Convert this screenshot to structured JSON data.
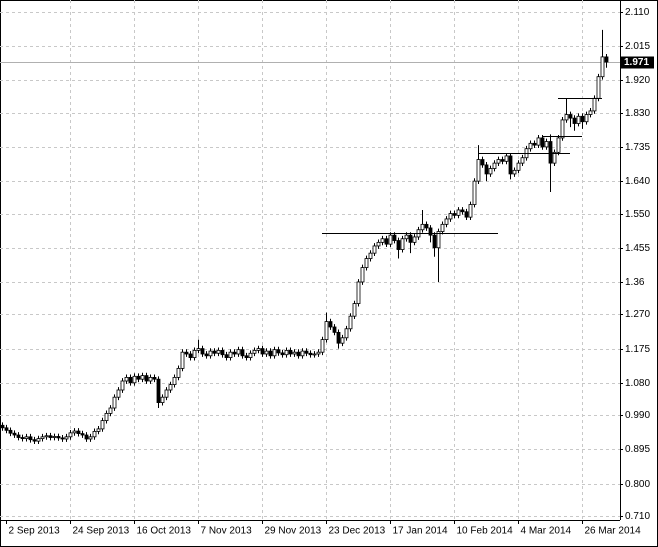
{
  "chart_data": {
    "type": "candlestick",
    "categories": [
      null,
      "2 Sep 2013",
      null,
      null,
      null,
      null,
      null,
      null,
      null,
      null,
      null,
      null,
      null,
      null,
      null,
      null,
      null,
      "24 Sep 2013",
      null,
      null,
      null,
      null,
      null,
      null,
      null,
      null,
      null,
      null,
      null,
      null,
      null,
      null,
      null,
      "16 Oct 2013",
      null,
      null,
      null,
      null,
      null,
      null,
      null,
      null,
      null,
      null,
      null,
      null,
      null,
      null,
      null,
      "7 Nov 2013",
      null,
      null,
      null,
      null,
      null,
      null,
      null,
      null,
      null,
      null,
      null,
      null,
      null,
      null,
      null,
      "29 Nov 2013",
      null,
      null,
      null,
      null,
      null,
      null,
      null,
      null,
      null,
      null,
      null,
      null,
      null,
      null,
      null,
      "23 Dec 2013",
      null,
      null,
      null,
      null,
      null,
      null,
      null,
      null,
      null,
      null,
      null,
      null,
      null,
      null,
      null,
      "17 Jan 2014",
      null,
      null,
      null,
      null,
      null,
      null,
      null,
      null,
      null,
      null,
      null,
      null,
      null,
      null,
      null,
      "10 Feb 2014",
      null,
      null,
      null,
      null,
      null,
      null,
      null,
      null,
      null,
      null,
      null,
      null,
      null,
      null,
      null,
      "4 Mar 2014",
      null,
      null,
      null,
      null,
      null,
      null,
      null,
      null,
      null,
      null,
      null,
      null,
      null,
      null,
      null,
      "26 Mar 2014",
      null,
      null,
      null,
      null,
      null,
      null
    ],
    "open": [
      0.962,
      0.955,
      0.948,
      0.94,
      0.935,
      0.928,
      0.925,
      0.93,
      0.922,
      0.918,
      0.925,
      0.93,
      0.933,
      0.928,
      0.931,
      0.927,
      0.924,
      0.93,
      0.941,
      0.946,
      0.939,
      0.935,
      0.924,
      0.93,
      0.945,
      0.952,
      0.975,
      0.995,
      1.01,
      1.04,
      1.06,
      1.085,
      1.095,
      1.08,
      1.098,
      1.09,
      1.1,
      1.085,
      1.095,
      1.09,
      1.025,
      1.04,
      1.06,
      1.075,
      1.095,
      1.12,
      1.165,
      1.16,
      1.15,
      1.17,
      1.175,
      1.16,
      1.155,
      1.168,
      1.162,
      1.17,
      1.158,
      1.15,
      1.165,
      1.16,
      1.172,
      1.155,
      1.15,
      1.162,
      1.17,
      1.175,
      1.16,
      1.168,
      1.155,
      1.172,
      1.163,
      1.158,
      1.17,
      1.16,
      1.165,
      1.155,
      1.168,
      1.162,
      1.158,
      1.16,
      1.165,
      1.2,
      1.25,
      1.235,
      1.22,
      1.19,
      1.205,
      1.23,
      1.265,
      1.3,
      1.36,
      1.4,
      1.425,
      1.44,
      1.46,
      1.47,
      1.48,
      1.465,
      1.49,
      1.475,
      1.45,
      1.48,
      1.49,
      1.47,
      1.485,
      1.505,
      1.52,
      1.51,
      1.49,
      1.455,
      1.5,
      1.52,
      1.535,
      1.55,
      1.545,
      1.56,
      1.555,
      1.54,
      1.575,
      1.64,
      1.7,
      1.685,
      1.66,
      1.675,
      1.69,
      1.7,
      1.695,
      1.71,
      1.66,
      1.67,
      1.69,
      1.705,
      1.73,
      1.745,
      1.74,
      1.76,
      1.735,
      1.75,
      1.69,
      1.72,
      1.76,
      1.81,
      1.825,
      1.815,
      1.8,
      1.82,
      1.805,
      1.825,
      1.835,
      1.87,
      1.93,
      1.985
    ],
    "high": [
      0.97,
      0.963,
      0.956,
      0.948,
      0.943,
      0.936,
      0.938,
      0.938,
      0.93,
      0.933,
      0.938,
      0.941,
      0.941,
      0.939,
      0.939,
      0.935,
      0.938,
      0.949,
      0.954,
      0.954,
      0.947,
      0.943,
      0.938,
      0.953,
      0.96,
      0.983,
      1.003,
      1.018,
      1.048,
      1.068,
      1.093,
      1.103,
      1.103,
      1.106,
      1.106,
      1.108,
      1.108,
      1.103,
      1.103,
      1.098,
      1.048,
      1.068,
      1.083,
      1.103,
      1.128,
      1.173,
      1.173,
      1.168,
      1.178,
      1.2,
      1.183,
      1.168,
      1.176,
      1.176,
      1.178,
      1.178,
      1.166,
      1.173,
      1.173,
      1.18,
      1.18,
      1.163,
      1.17,
      1.178,
      1.183,
      1.183,
      1.176,
      1.176,
      1.18,
      1.18,
      1.171,
      1.178,
      1.178,
      1.173,
      1.173,
      1.176,
      1.176,
      1.17,
      1.168,
      1.173,
      1.208,
      1.275,
      1.258,
      1.243,
      1.228,
      1.213,
      1.238,
      1.273,
      1.308,
      1.368,
      1.408,
      1.433,
      1.448,
      1.468,
      1.478,
      1.488,
      1.488,
      1.498,
      1.498,
      1.483,
      1.488,
      1.498,
      1.498,
      1.493,
      1.513,
      1.56,
      1.528,
      1.518,
      1.498,
      1.508,
      1.528,
      1.543,
      1.558,
      1.558,
      1.568,
      1.568,
      1.563,
      1.583,
      1.648,
      1.74,
      1.708,
      1.693,
      1.683,
      1.698,
      1.708,
      1.708,
      1.718,
      1.718,
      1.678,
      1.698,
      1.713,
      1.738,
      1.753,
      1.753,
      1.768,
      1.768,
      1.758,
      1.77,
      1.728,
      1.768,
      1.818,
      1.87,
      1.833,
      1.823,
      1.828,
      1.828,
      1.833,
      1.843,
      1.878,
      1.938,
      2.06,
      1.993
    ],
    "low": [
      0.947,
      0.94,
      0.932,
      0.927,
      0.92,
      0.917,
      0.917,
      0.914,
      0.91,
      0.91,
      0.917,
      0.922,
      0.92,
      0.92,
      0.919,
      0.916,
      0.916,
      0.922,
      0.933,
      0.931,
      0.927,
      0.916,
      0.916,
      0.922,
      0.937,
      0.944,
      0.967,
      0.987,
      1.002,
      1.032,
      1.052,
      1.077,
      1.072,
      1.072,
      1.082,
      1.082,
      1.077,
      1.077,
      1.082,
      1.01,
      1.017,
      1.032,
      1.052,
      1.067,
      1.087,
      1.112,
      1.152,
      1.142,
      1.142,
      1.162,
      1.152,
      1.147,
      1.147,
      1.154,
      1.154,
      1.15,
      1.142,
      1.142,
      1.152,
      1.152,
      1.147,
      1.142,
      1.142,
      1.154,
      1.162,
      1.152,
      1.152,
      1.147,
      1.147,
      1.155,
      1.15,
      1.15,
      1.152,
      1.152,
      1.147,
      1.147,
      1.154,
      1.15,
      1.15,
      1.152,
      1.157,
      1.192,
      1.227,
      1.212,
      1.175,
      1.182,
      1.197,
      1.222,
      1.257,
      1.292,
      1.352,
      1.392,
      1.417,
      1.432,
      1.452,
      1.462,
      1.457,
      1.457,
      1.467,
      1.425,
      1.442,
      1.472,
      1.44,
      1.462,
      1.477,
      1.497,
      1.502,
      1.47,
      1.43,
      1.36,
      1.492,
      1.512,
      1.527,
      1.537,
      1.537,
      1.547,
      1.532,
      1.532,
      1.567,
      1.632,
      1.677,
      1.64,
      1.652,
      1.667,
      1.682,
      1.687,
      1.687,
      1.645,
      1.652,
      1.662,
      1.682,
      1.697,
      1.722,
      1.732,
      1.732,
      1.727,
      1.727,
      1.61,
      1.682,
      1.712,
      1.752,
      1.802,
      1.79,
      1.78,
      1.792,
      1.785,
      1.797,
      1.817,
      1.827,
      1.862,
      1.922,
      1.955
    ],
    "close": [
      0.955,
      0.948,
      0.94,
      0.935,
      0.928,
      0.925,
      0.93,
      0.922,
      0.918,
      0.925,
      0.93,
      0.933,
      0.928,
      0.931,
      0.927,
      0.924,
      0.93,
      0.941,
      0.946,
      0.939,
      0.935,
      0.924,
      0.93,
      0.945,
      0.952,
      0.975,
      0.995,
      1.01,
      1.04,
      1.06,
      1.085,
      1.095,
      1.08,
      1.098,
      1.09,
      1.1,
      1.085,
      1.095,
      1.09,
      1.025,
      1.04,
      1.06,
      1.075,
      1.095,
      1.12,
      1.165,
      1.16,
      1.15,
      1.17,
      1.175,
      1.16,
      1.155,
      1.168,
      1.162,
      1.17,
      1.158,
      1.15,
      1.165,
      1.16,
      1.172,
      1.155,
      1.15,
      1.162,
      1.17,
      1.175,
      1.16,
      1.168,
      1.155,
      1.172,
      1.163,
      1.158,
      1.17,
      1.16,
      1.165,
      1.155,
      1.168,
      1.162,
      1.158,
      1.16,
      1.165,
      1.2,
      1.25,
      1.235,
      1.22,
      1.19,
      1.205,
      1.23,
      1.265,
      1.3,
      1.36,
      1.4,
      1.425,
      1.44,
      1.46,
      1.47,
      1.48,
      1.465,
      1.49,
      1.475,
      1.45,
      1.48,
      1.49,
      1.47,
      1.485,
      1.505,
      1.52,
      1.51,
      1.49,
      1.455,
      1.5,
      1.52,
      1.535,
      1.55,
      1.545,
      1.56,
      1.555,
      1.54,
      1.575,
      1.64,
      1.7,
      1.685,
      1.66,
      1.675,
      1.69,
      1.7,
      1.695,
      1.71,
      1.66,
      1.67,
      1.69,
      1.705,
      1.73,
      1.745,
      1.74,
      1.76,
      1.735,
      1.75,
      1.69,
      1.72,
      1.76,
      1.81,
      1.825,
      1.815,
      1.8,
      1.82,
      1.805,
      1.825,
      1.835,
      1.87,
      1.93,
      1.985,
      1.971
    ],
    "ylim": [
      0.699,
      2.143
    ],
    "yticks": [
      {
        "value": 2.11,
        "label": "2.110"
      },
      2.015,
      {
        "value": 1.92,
        "label": "1.920"
      },
      {
        "value": 1.83,
        "label": "1.830"
      },
      1.735,
      {
        "value": 1.64,
        "label": "1.640"
      },
      {
        "value": 1.55,
        "label": "1.550"
      },
      1.455,
      1.36,
      {
        "value": 1.27,
        "label": "1.270"
      },
      1.175,
      {
        "value": 1.08,
        "label": "1.080"
      },
      {
        "value": 0.99,
        "label": "0.990"
      },
      0.895,
      {
        "value": 0.8,
        "label": "0.800"
      },
      {
        "value": 0.71,
        "label": "0.710"
      }
    ],
    "grid": true,
    "up_color": "#ffffff",
    "down_color": "#000000",
    "wick_color": "#000000",
    "levels": [
      {
        "value": 1.495,
        "start": 80,
        "end": 124
      },
      {
        "value": 1.718,
        "start": 119,
        "end": 142
      },
      {
        "value": 1.765,
        "start": 135,
        "end": 145
      },
      {
        "value": 1.87,
        "start": 139,
        "end": 150
      }
    ]
  }
}
